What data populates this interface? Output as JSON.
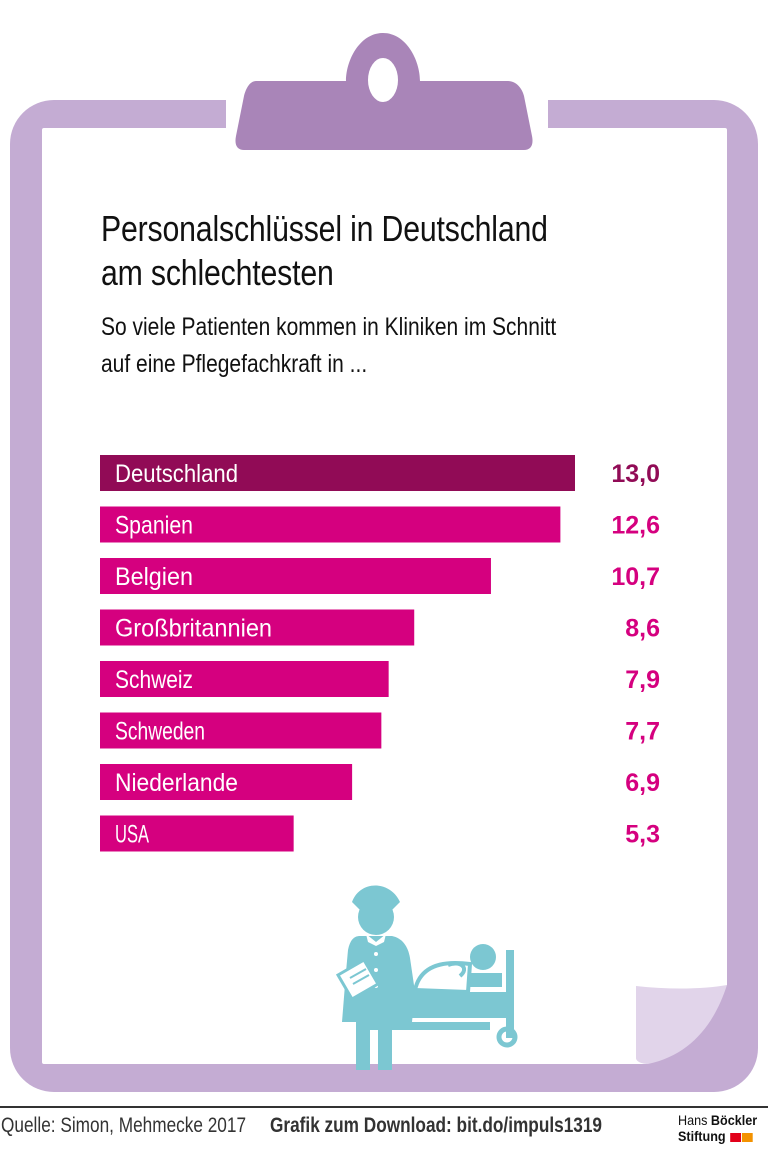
{
  "header": {
    "title_line1": "Personalschlüssel in Deutschland",
    "title_line2": "am schlechtesten",
    "subtitle_line1": "So viele Patienten kommen in Kliniken im Schnitt",
    "subtitle_line2": "auf eine Pflegefachkraft in ..."
  },
  "colors": {
    "frame": "#c4acd3",
    "clip": "#a985b8",
    "highlight_bar": "#910b56",
    "bar": "#d5007f",
    "highlight_value": "#910b56",
    "value": "#d5007f",
    "illustration": "#7cc7d2",
    "curl": "#e1d4ea"
  },
  "chart_data": {
    "type": "bar",
    "orientation": "horizontal",
    "title": "Personalschlüssel in Deutschland am schlechtesten",
    "subtitle": "So viele Patienten kommen in Kliniken im Schnitt auf eine Pflegefachkraft in ...",
    "xlabel": "",
    "ylabel": "",
    "xlim": [
      0,
      13
    ],
    "grid": false,
    "legend": "none",
    "categories": [
      "Deutschland",
      "Spanien",
      "Belgien",
      "Großbritannien",
      "Schweiz",
      "Schweden",
      "Niederlande",
      "USA"
    ],
    "values": [
      13.0,
      12.6,
      10.7,
      8.6,
      7.9,
      7.7,
      6.9,
      5.3
    ],
    "value_labels": [
      "13,0",
      "12,6",
      "10,7",
      "8,6",
      "7,9",
      "7,7",
      "6,9",
      "5,3"
    ],
    "highlight_index": 0
  },
  "illustration": {
    "icon": "nurse-with-patient-in-bed-icon"
  },
  "footer": {
    "source": "Quelle: Simon, Mehmecke 2017",
    "download": "Grafik zum Download: bit.do/impuls1319",
    "logo_line1_light": "Hans ",
    "logo_line1_bold": "Böckler",
    "logo_line2": "Stiftung",
    "logo_colors": [
      "#e2001a",
      "#f39200"
    ]
  }
}
